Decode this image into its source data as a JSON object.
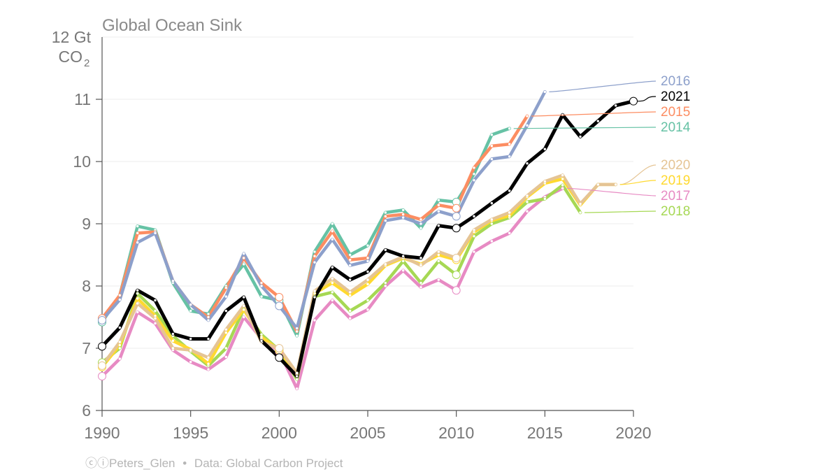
{
  "chart_data": {
    "type": "line",
    "title": "Global Ocean Sink",
    "ylabel_line1": "12 Gt",
    "ylabel_line2": "CO",
    "ylabel_sub": "2",
    "xlim": [
      1990,
      2020
    ],
    "ylim": [
      6,
      12
    ],
    "x_ticks": [
      1990,
      1995,
      2000,
      2005,
      2010,
      2015,
      2020
    ],
    "y_ticks": [
      6,
      7,
      8,
      9,
      10,
      11
    ],
    "grid": true,
    "series": [
      {
        "name": "2014",
        "color": "#66c2a5",
        "start": 1990,
        "values": [
          7.42,
          7.85,
          8.96,
          8.9,
          8.05,
          7.6,
          7.55,
          8.0,
          8.35,
          7.83,
          7.77,
          7.2,
          8.55,
          9.0,
          8.5,
          8.65,
          9.18,
          9.22,
          8.93,
          9.38,
          9.35,
          9.8,
          10.43,
          10.53
        ]
      },
      {
        "name": "2015",
        "color": "#fc8d62",
        "start": 1990,
        "values": [
          7.48,
          7.85,
          8.85,
          8.87,
          8.08,
          7.7,
          7.5,
          7.97,
          8.45,
          8.05,
          7.82,
          7.27,
          8.48,
          8.88,
          8.42,
          8.45,
          9.12,
          9.15,
          9.07,
          9.3,
          9.25,
          9.9,
          10.25,
          10.28,
          10.73
        ]
      },
      {
        "name": "2016",
        "color": "#8da0cb",
        "start": 1990,
        "values": [
          7.45,
          7.78,
          8.7,
          8.85,
          8.08,
          7.7,
          7.45,
          7.83,
          8.52,
          8.0,
          7.68,
          7.32,
          8.38,
          8.75,
          8.33,
          8.4,
          9.05,
          9.1,
          9.0,
          9.2,
          9.12,
          9.7,
          10.04,
          10.08,
          10.58,
          11.12
        ]
      },
      {
        "name": "2017",
        "color": "#e78ac3",
        "start": 1990,
        "values": [
          6.55,
          6.83,
          7.58,
          7.4,
          6.97,
          6.78,
          6.66,
          6.86,
          7.5,
          7.15,
          6.95,
          6.35,
          7.45,
          7.77,
          7.48,
          7.62,
          8.0,
          8.25,
          7.98,
          8.1,
          7.93,
          8.55,
          8.72,
          8.85,
          9.2,
          9.43,
          9.57
        ]
      },
      {
        "name": "2018",
        "color": "#a6d854",
        "start": 1990,
        "values": [
          6.77,
          7.0,
          7.88,
          7.6,
          7.2,
          6.95,
          6.72,
          7.0,
          7.63,
          7.22,
          6.97,
          6.5,
          7.83,
          7.9,
          7.6,
          7.77,
          8.05,
          8.4,
          8.05,
          8.4,
          8.18,
          8.8,
          9.0,
          9.1,
          9.35,
          9.4,
          9.62,
          9.18
        ]
      },
      {
        "name": "2019",
        "color": "#ffd92f",
        "start": 1990,
        "values": [
          6.7,
          7.05,
          7.8,
          7.52,
          7.12,
          6.98,
          6.75,
          7.25,
          7.62,
          7.18,
          6.97,
          6.58,
          7.88,
          8.05,
          7.85,
          8.03,
          8.33,
          8.45,
          8.35,
          8.5,
          8.42,
          8.87,
          9.05,
          9.13,
          9.43,
          9.65,
          9.72,
          9.3,
          9.63,
          9.63
        ]
      },
      {
        "name": "2020",
        "color": "#e5c494",
        "start": 1990,
        "values": [
          6.72,
          7.1,
          7.72,
          7.48,
          7.0,
          6.97,
          6.85,
          7.3,
          7.68,
          7.1,
          7.0,
          6.6,
          7.92,
          8.12,
          7.9,
          8.1,
          8.35,
          8.47,
          8.33,
          8.55,
          8.45,
          8.9,
          9.07,
          9.18,
          9.45,
          9.68,
          9.78,
          9.32,
          9.63,
          9.63
        ]
      },
      {
        "name": "2021",
        "color": "#000000",
        "start": 1990,
        "values": [
          7.03,
          7.33,
          7.93,
          7.77,
          7.23,
          7.15,
          7.15,
          7.6,
          7.82,
          7.12,
          6.85,
          6.55,
          7.82,
          8.3,
          8.1,
          8.23,
          8.58,
          8.48,
          8.45,
          8.97,
          8.93,
          9.12,
          9.33,
          9.53,
          9.97,
          10.2,
          10.75,
          10.4,
          10.65,
          10.9,
          10.97
        ]
      }
    ],
    "legend": [
      {
        "name": "2016",
        "color": "#8da0cb"
      },
      {
        "name": "2021",
        "color": "#000000"
      },
      {
        "name": "2015",
        "color": "#fc8d62"
      },
      {
        "name": "2014",
        "color": "#66c2a5"
      },
      {
        "name": "2020",
        "color": "#e5c494"
      },
      {
        "name": "2019",
        "color": "#ffd92f"
      },
      {
        "name": "2017",
        "color": "#e78ac3"
      },
      {
        "name": "2018",
        "color": "#a6d854"
      }
    ]
  },
  "credit": {
    "cc_symbol": "ⓒⓘ",
    "author": "Peters_Glen",
    "separator": "•",
    "source": "Data: Global Carbon Project"
  }
}
